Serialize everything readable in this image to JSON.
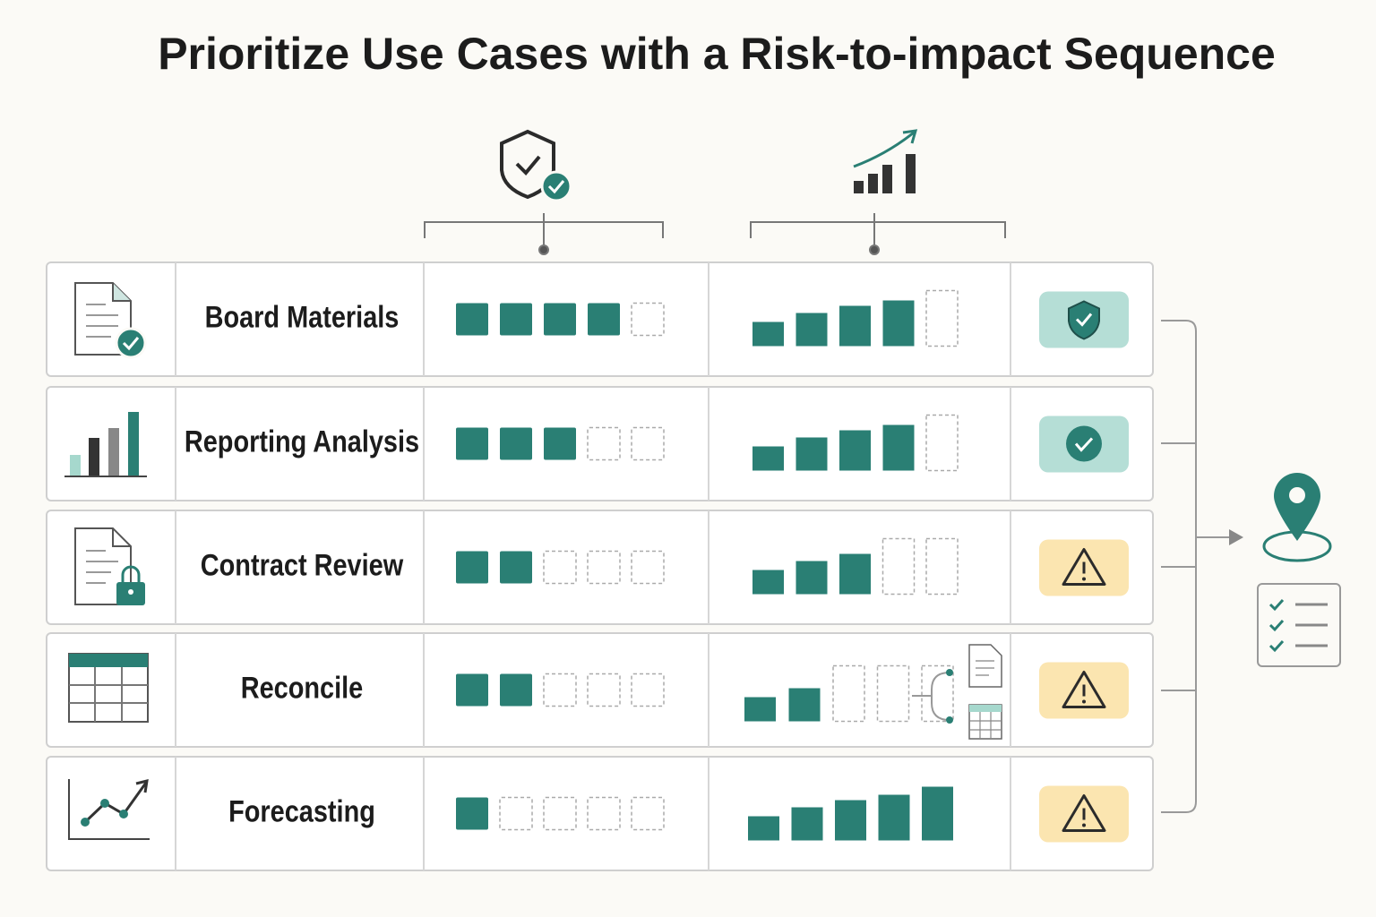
{
  "title": "Prioritize Use Cases with a Risk-to-impact Sequence",
  "scale_max": 5,
  "rows": [
    {
      "label": "Board Materials",
      "risk": 4,
      "impact": 4,
      "status_color": "#b5ded6"
    },
    {
      "label": "Reporting Analysis",
      "risk": 3,
      "impact": 4,
      "status_color": "#b5ded6"
    },
    {
      "label": "Contract Review",
      "risk": 2,
      "impact": 3,
      "status_color": "#fbe5b0"
    },
    {
      "label": "Reconcile",
      "risk": 2,
      "impact": 2,
      "status_color": "#fbe5b0"
    },
    {
      "label": "Forecasting",
      "risk": 1,
      "impact": 5,
      "status_color": "#fbe5b0"
    }
  ]
}
